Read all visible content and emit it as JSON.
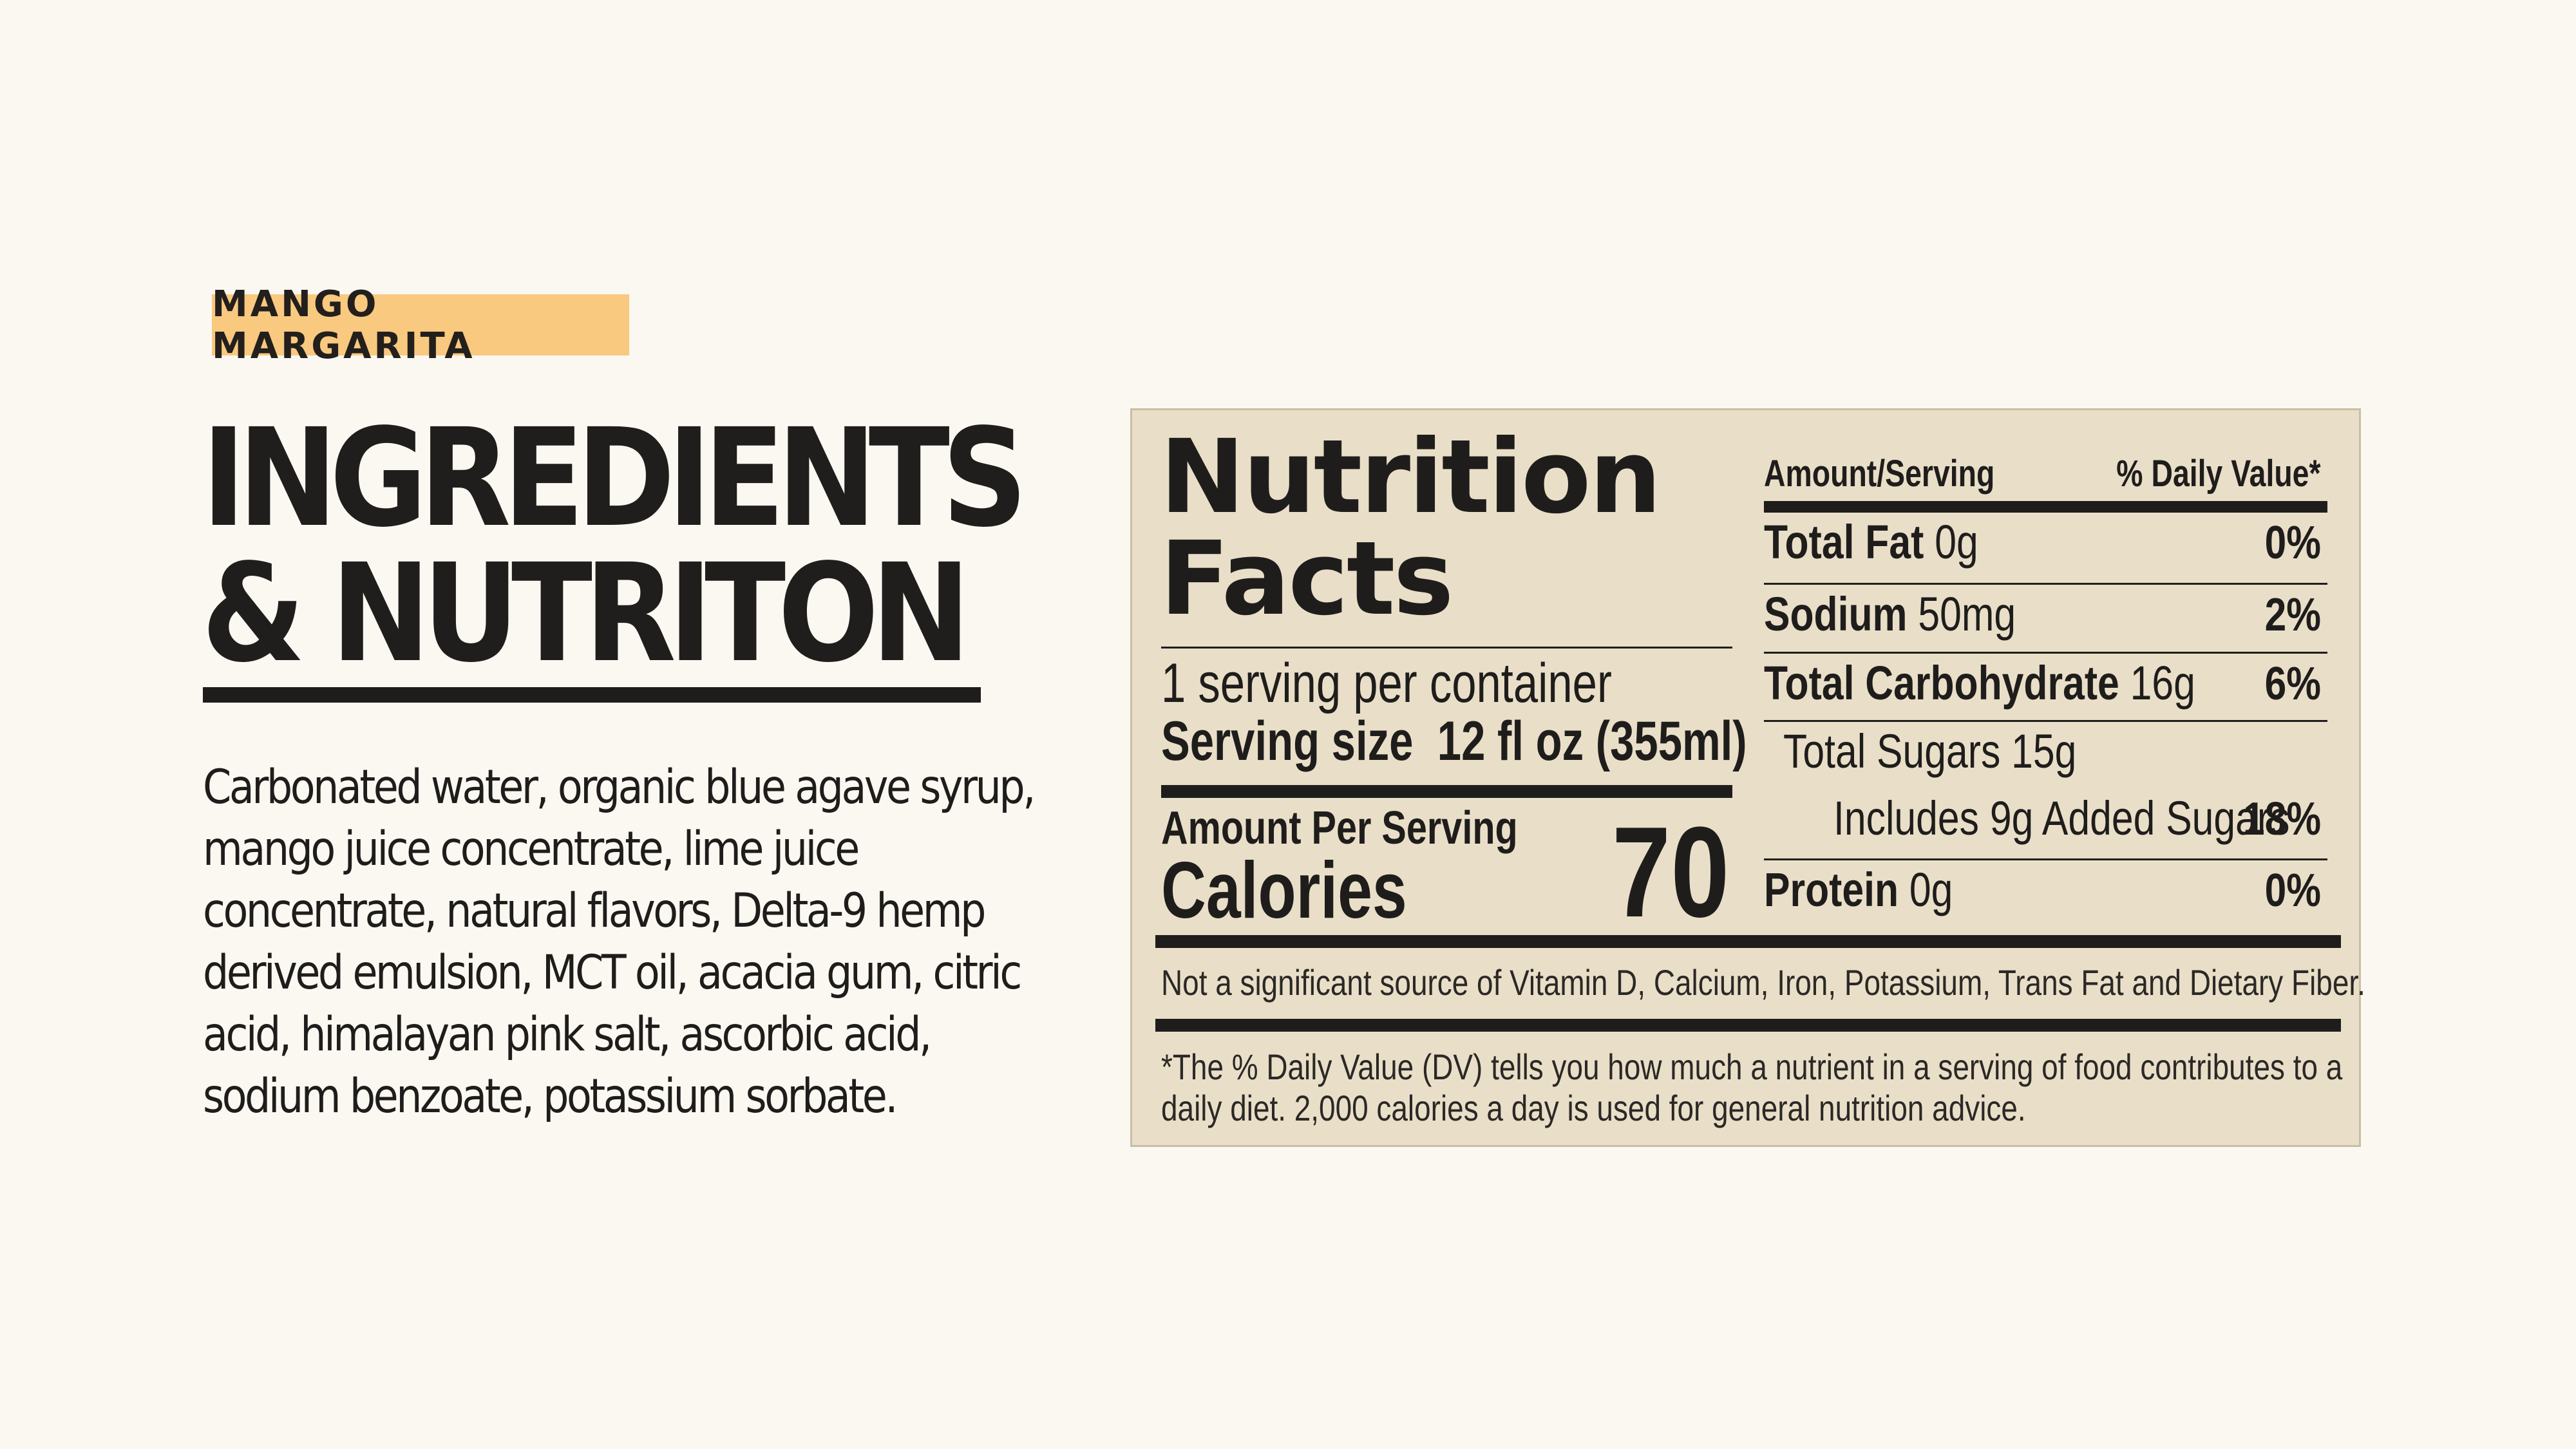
{
  "badge": "MANGO MARGARITA",
  "heading": {
    "line1": "INGREDIENTS",
    "line2": "& NUTRITON"
  },
  "ingredients_lines": [
    "Carbonated water, organic blue agave syrup,",
    "mango juice concentrate, lime juice",
    "concentrate, natural flavors, Delta-9 hemp",
    "derived emulsion, MCT oil, acacia gum, citric",
    "acid, himalayan pink salt, ascorbic acid,",
    "sodium benzoate, potassium sorbate."
  ],
  "nutrition": {
    "title_line1": "Nutrition",
    "title_line2": "Facts",
    "servings": "1 serving per container",
    "serving_size_label": "Serving size",
    "serving_size_value": "12 fl oz (355ml)",
    "amount_per_serving": "Amount Per Serving",
    "calories_label": "Calories",
    "calories_value": "70",
    "header_amount": "Amount/Serving",
    "header_dv": "% Daily Value*",
    "rows": [
      {
        "name": "Total Fat",
        "amount": "0g",
        "dv": "0%"
      },
      {
        "name": "Sodium",
        "amount": "50mg",
        "dv": "2%"
      },
      {
        "name": "Total Carbohydrate",
        "amount": "16g",
        "dv": "6%"
      },
      {
        "name": "Total Sugars 15g",
        "amount": "",
        "dv": ""
      },
      {
        "name": "Includes 9g Added Sugars",
        "amount": "",
        "dv": "18%"
      },
      {
        "name": "Protein",
        "amount": "0g",
        "dv": "0%"
      }
    ],
    "not_significant": "Not a significant source of Vitamin D, Calcium, Iron, Potassium, Trans Fat and Dietary Fiber.",
    "footnote_line1": "*The % Daily Value (DV) tells you how much a nutrient in a serving of food contributes to a",
    "footnote_line2": "daily diet. 2,000 calories a day is used for general nutrition advice."
  }
}
